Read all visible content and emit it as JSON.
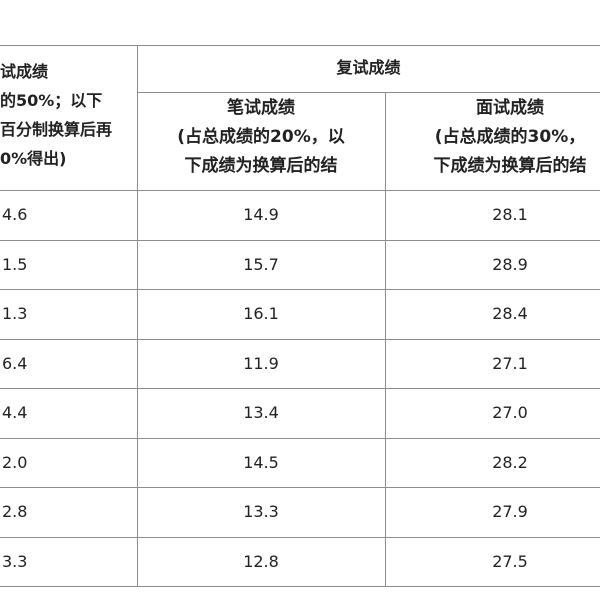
{
  "table": {
    "header": {
      "first_column": [
        "试成绩",
        "的50%；以下",
        "百分制换算后再",
        "0%得出)"
      ],
      "group": "复试成绩",
      "written": [
        "笔试成绩",
        "(占总成绩的20%，以",
        "下成绩为换算后的结"
      ],
      "interview": [
        "面试成绩",
        "(占总成绩的30%，",
        "下成绩为换算后的结"
      ]
    },
    "rows": [
      [
        "4.6",
        "14.9",
        "28.1"
      ],
      [
        "1.5",
        "15.7",
        "28.9"
      ],
      [
        "1.3",
        "16.1",
        "28.4"
      ],
      [
        "6.4",
        "11.9",
        "27.1"
      ],
      [
        "4.4",
        "13.4",
        "27.0"
      ],
      [
        "2.0",
        "14.5",
        "28.2"
      ],
      [
        "2.8",
        "13.3",
        "27.9"
      ],
      [
        "3.3",
        "12.8",
        "27.5"
      ]
    ]
  }
}
